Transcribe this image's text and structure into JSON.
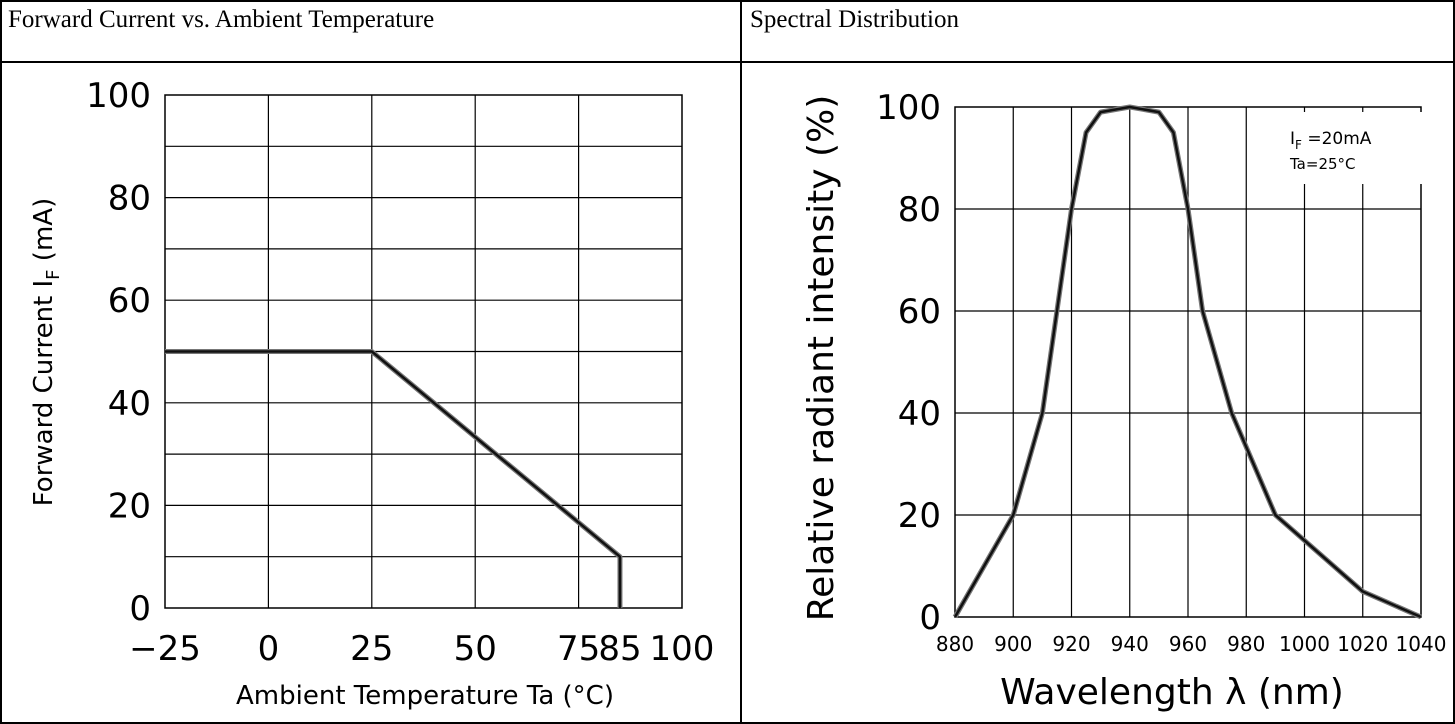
{
  "table": {
    "left_title": "Forward Current vs. Ambient Temperature",
    "right_title": "Spectral Distribution"
  },
  "chart_data": [
    {
      "type": "line",
      "title": "Forward Current vs. Ambient Temperature",
      "xlabel": "Ambient Temperature Ta (°C)",
      "ylabel": "Forward Current IF (mA)",
      "ylabel_main": "Forward Current I",
      "ylabel_sub": "F",
      "ylabel_unit": "(mA)",
      "xlim": [
        -25,
        100
      ],
      "ylim": [
        0,
        100
      ],
      "x_ticks": [
        -25,
        0,
        25,
        50,
        75,
        85,
        100
      ],
      "x_tick_labels": [
        "−25",
        "0",
        "25",
        "50",
        "75",
        "85",
        "100"
      ],
      "y_ticks": [
        0,
        20,
        40,
        60,
        80,
        100
      ],
      "y_tick_labels": [
        "0",
        "20",
        "40",
        "60",
        "80",
        "100"
      ],
      "grid": true,
      "series": [
        {
          "x": [
            -25,
            25,
            85,
            85
          ],
          "y": [
            50,
            50,
            10,
            0
          ]
        }
      ]
    },
    {
      "type": "line",
      "title": "Spectral Distribution",
      "xlabel": "Wavelength λ (nm)",
      "ylabel": "Relative radiant intensity (%)",
      "xlim": [
        880,
        1040
      ],
      "ylim": [
        0,
        100
      ],
      "x_ticks": [
        880,
        900,
        920,
        940,
        960,
        980,
        1000,
        1020,
        1040
      ],
      "x_tick_labels": [
        "880",
        "900",
        "920",
        "940",
        "960",
        "980",
        "1000",
        "1020",
        "1040"
      ],
      "y_ticks": [
        0,
        20,
        40,
        60,
        80,
        100
      ],
      "y_tick_labels": [
        "0",
        "20",
        "40",
        "60",
        "80",
        "100"
      ],
      "grid": true,
      "annotation_line1": "IF =20mA",
      "annotation_line1_main": "I",
      "annotation_line1_sub": "F",
      "annotation_line1_rest": " =20mA",
      "annotation_line2": "Ta=25°C",
      "series": [
        {
          "x": [
            880,
            900,
            910,
            920,
            925,
            930,
            940,
            950,
            955,
            960,
            965,
            975,
            990,
            1000,
            1020,
            1040
          ],
          "y": [
            0,
            20,
            40,
            80,
            95,
            99,
            100,
            99,
            95,
            80,
            60,
            40,
            20,
            15,
            5,
            0
          ]
        }
      ]
    }
  ]
}
